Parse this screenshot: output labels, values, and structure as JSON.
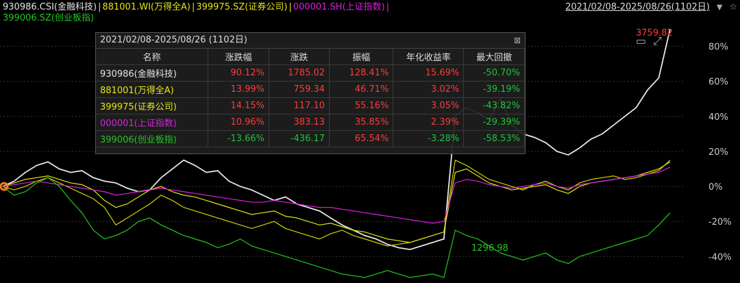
{
  "legend": {
    "items": [
      {
        "label": "930986.CSI(金融科技)",
        "color": "#e6e6e6"
      },
      {
        "label": "881001.WI(万得全A)",
        "color": "#e6e617"
      },
      {
        "label": "399975.SZ(证券公司)",
        "color": "#e6e617"
      },
      {
        "label": "000001.SH(上证指数)",
        "color": "#e01ee0"
      },
      {
        "label": "399006.SZ(创业板指)",
        "color": "#22c922"
      }
    ],
    "separator": "|",
    "range": "2021/02/08-2025/08/26(1102日)"
  },
  "panel": {
    "title": "2021/02/08-2025/08/26 (1102日)",
    "columns": [
      "名称",
      "涨跌幅",
      "涨跌",
      "振幅",
      "年化收益率",
      "最大回撤"
    ],
    "rows": [
      {
        "name": "930986(金融科技)",
        "name_color": "#e6e6e6",
        "chg_pct": "90.12%",
        "chg": "1785.02",
        "amp": "128.41%",
        "annual": "15.69%",
        "mdd": "-50.70%"
      },
      {
        "name": "881001(万得全A)",
        "name_color": "#e6e617",
        "chg_pct": "13.99%",
        "chg": "759.34",
        "amp": "46.71%",
        "annual": "3.02%",
        "mdd": "-39.19%"
      },
      {
        "name": "399975(证券公司)",
        "name_color": "#e6e617",
        "chg_pct": "14.15%",
        "chg": "117.10",
        "amp": "55.16%",
        "annual": "3.05%",
        "mdd": "-43.82%"
      },
      {
        "name": "000001(上证指数)",
        "name_color": "#e01ee0",
        "chg_pct": "10.96%",
        "chg": "383.13",
        "amp": "35.85%",
        "annual": "2.39%",
        "mdd": "-29.39%"
      },
      {
        "name": "399006(创业板指)",
        "name_color": "#22c922",
        "chg_pct": "-13.66%",
        "chg": "-436.17",
        "amp": "65.54%",
        "annual": "-3.28%",
        "mdd": "-58.53%"
      }
    ]
  },
  "chart_data": {
    "type": "line",
    "y_unit": "%",
    "ylim": [
      -52,
      90
    ],
    "yticks": [
      "80%",
      "60%",
      "40%",
      "20%",
      "0%",
      "-20%",
      "-40%"
    ],
    "ytick_values": [
      80,
      60,
      40,
      20,
      0,
      -20,
      -40
    ],
    "annotations": [
      {
        "text": "3759.82",
        "color": "#ff3b3b"
      },
      {
        "text": "1296.98",
        "color": "#22c922"
      }
    ],
    "x_points": 60,
    "series": [
      {
        "name": "930986.CSI(金融科技)",
        "color": "#e6e6e6",
        "values": [
          0,
          3,
          8,
          12,
          14,
          10,
          8,
          9,
          5,
          3,
          2,
          -1,
          -3,
          -2,
          5,
          10,
          15,
          12,
          8,
          9,
          3,
          0,
          -2,
          -5,
          -8,
          -6,
          -10,
          -12,
          -14,
          -18,
          -22,
          -25,
          -28,
          -30,
          -33,
          -35,
          -36,
          -34,
          -32,
          -30,
          40,
          45,
          42,
          38,
          50,
          35,
          30,
          28,
          25,
          20,
          18,
          22,
          27,
          30,
          35,
          40,
          45,
          55,
          62,
          90
        ]
      },
      {
        "name": "881001.WI(万得全A)",
        "color": "#e6e617",
        "values": [
          0,
          2,
          4,
          5,
          6,
          4,
          2,
          1,
          -2,
          -8,
          -12,
          -10,
          -6,
          -2,
          0,
          -3,
          -5,
          -6,
          -8,
          -10,
          -12,
          -14,
          -16,
          -15,
          -14,
          -17,
          -18,
          -20,
          -22,
          -21,
          -23,
          -25,
          -26,
          -28,
          -30,
          -31,
          -32,
          -30,
          -28,
          -26,
          8,
          10,
          6,
          2,
          0,
          -2,
          -1,
          0,
          1,
          -2,
          -4,
          0,
          2,
          3,
          4,
          5,
          6,
          8,
          10,
          14
        ]
      },
      {
        "name": "399975.SZ(证券公司)",
        "color": "#d4d400",
        "values": [
          0,
          -2,
          0,
          3,
          5,
          2,
          -1,
          -4,
          -7,
          -12,
          -22,
          -18,
          -14,
          -10,
          -5,
          -8,
          -12,
          -14,
          -16,
          -18,
          -20,
          -22,
          -24,
          -22,
          -20,
          -24,
          -26,
          -28,
          -30,
          -27,
          -25,
          -28,
          -30,
          -32,
          -34,
          -33,
          -32,
          -30,
          -28,
          -26,
          15,
          12,
          8,
          4,
          2,
          0,
          -2,
          1,
          3,
          0,
          -2,
          2,
          4,
          5,
          6,
          4,
          5,
          7,
          9,
          15
        ]
      },
      {
        "name": "000001.SH(上证指数)",
        "color": "#e01ee0",
        "values": [
          0,
          1,
          2,
          3,
          2,
          1,
          0,
          -1,
          -2,
          -3,
          -5,
          -4,
          -3,
          -2,
          -1,
          -2,
          -3,
          -4,
          -5,
          -6,
          -7,
          -8,
          -9,
          -9,
          -8,
          -9,
          -10,
          -11,
          -12,
          -12,
          -13,
          -14,
          -15,
          -16,
          -17,
          -18,
          -19,
          -20,
          -21,
          -20,
          2,
          4,
          3,
          1,
          0,
          -1,
          0,
          1,
          2,
          0,
          -1,
          1,
          2,
          3,
          4,
          5,
          6,
          7,
          8,
          11
        ]
      },
      {
        "name": "399006.SZ(创业板指)",
        "color": "#22c922",
        "values": [
          0,
          -5,
          -3,
          2,
          5,
          0,
          -8,
          -15,
          -25,
          -30,
          -28,
          -25,
          -20,
          -18,
          -22,
          -25,
          -28,
          -30,
          -32,
          -35,
          -33,
          -30,
          -34,
          -36,
          -38,
          -40,
          -42,
          -44,
          -46,
          -48,
          -50,
          -51,
          -52,
          -50,
          -48,
          -50,
          -52,
          -51,
          -50,
          -52,
          -25,
          -28,
          -30,
          -34,
          -38,
          -40,
          -42,
          -40,
          -38,
          -42,
          -44,
          -40,
          -38,
          -36,
          -34,
          -32,
          -30,
          -28,
          -22,
          -15
        ]
      }
    ]
  }
}
